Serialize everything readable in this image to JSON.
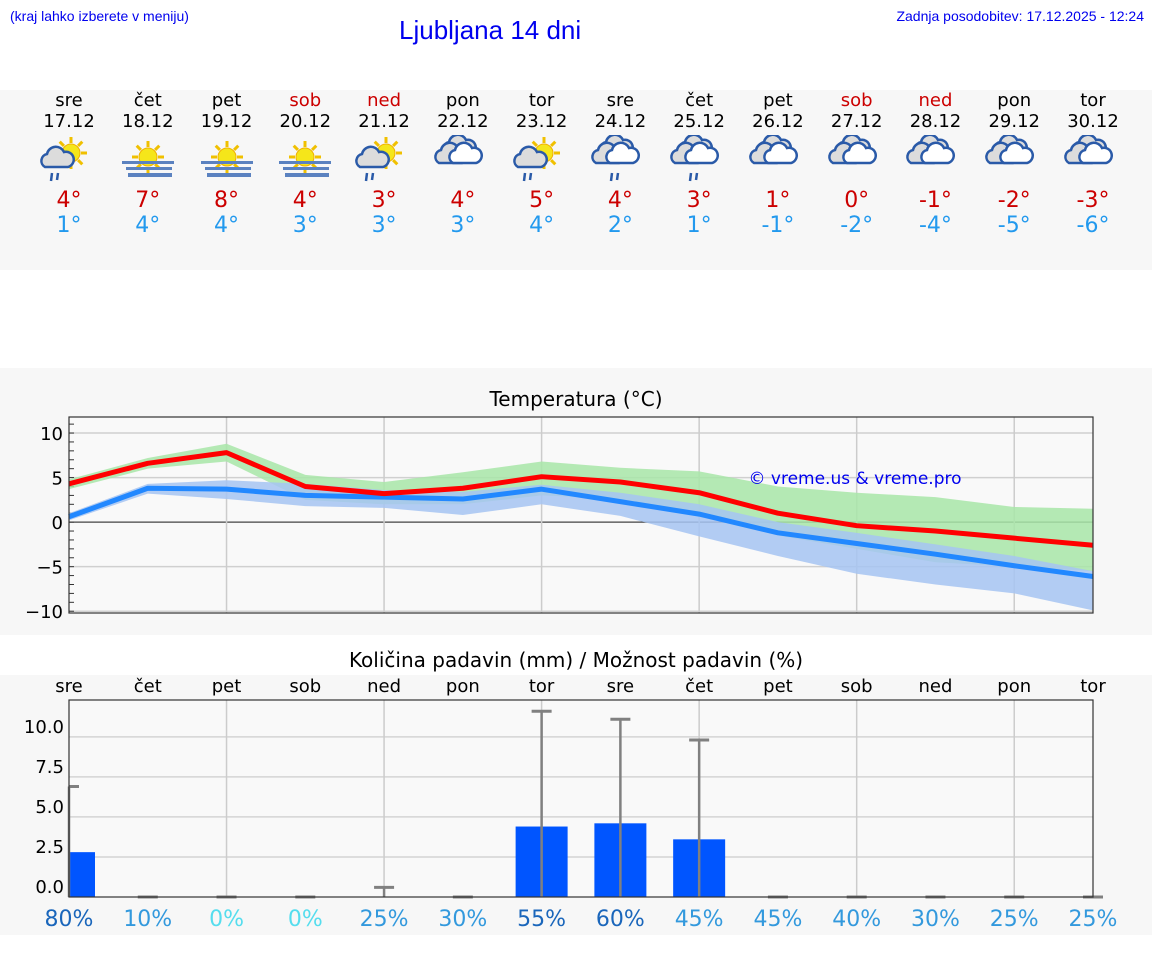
{
  "header": {
    "hint": "(kraj lahko izberete v meniju)",
    "title": "Ljubljana 14 dni",
    "updated": "Zadnja posodobitev: 17.12.2025 - 12:24"
  },
  "days": [
    {
      "name": "sre",
      "date": "17.12",
      "weekend": false,
      "icon": "sun-cloud-rain",
      "max": "4°",
      "min": "1°",
      "pct": "80%",
      "pct_color": "#1a66bb"
    },
    {
      "name": "čet",
      "date": "18.12",
      "weekend": false,
      "icon": "sun-fog",
      "max": "7°",
      "min": "4°",
      "pct": "10%",
      "pct_color": "#3399dd"
    },
    {
      "name": "pet",
      "date": "19.12",
      "weekend": false,
      "icon": "sun-fog",
      "max": "8°",
      "min": "4°",
      "pct": "0%",
      "pct_color": "#55ddee"
    },
    {
      "name": "sob",
      "date": "20.12",
      "weekend": true,
      "icon": "sun-fog",
      "max": "4°",
      "min": "3°",
      "pct": "0%",
      "pct_color": "#55ddee"
    },
    {
      "name": "ned",
      "date": "21.12",
      "weekend": true,
      "icon": "sun-cloud-rain",
      "max": "3°",
      "min": "3°",
      "pct": "25%",
      "pct_color": "#3399dd"
    },
    {
      "name": "pon",
      "date": "22.12",
      "weekend": false,
      "icon": "overcast",
      "max": "4°",
      "min": "3°",
      "pct": "30%",
      "pct_color": "#3399dd"
    },
    {
      "name": "tor",
      "date": "23.12",
      "weekend": false,
      "icon": "sun-cloud-rain",
      "max": "5°",
      "min": "4°",
      "pct": "55%",
      "pct_color": "#1a66bb"
    },
    {
      "name": "sre",
      "date": "24.12",
      "weekend": false,
      "icon": "overcast-rain",
      "max": "4°",
      "min": "2°",
      "pct": "60%",
      "pct_color": "#1a66bb"
    },
    {
      "name": "čet",
      "date": "25.12",
      "weekend": false,
      "icon": "overcast-rain",
      "max": "3°",
      "min": "1°",
      "pct": "45%",
      "pct_color": "#3399dd"
    },
    {
      "name": "pet",
      "date": "26.12",
      "weekend": false,
      "icon": "overcast",
      "max": "1°",
      "min": "-1°",
      "pct": "45%",
      "pct_color": "#3399dd"
    },
    {
      "name": "sob",
      "date": "27.12",
      "weekend": true,
      "icon": "overcast",
      "max": "0°",
      "min": "-2°",
      "pct": "40%",
      "pct_color": "#3399dd"
    },
    {
      "name": "ned",
      "date": "28.12",
      "weekend": true,
      "icon": "overcast",
      "max": "-1°",
      "min": "-4°",
      "pct": "30%",
      "pct_color": "#3399dd"
    },
    {
      "name": "pon",
      "date": "29.12",
      "weekend": false,
      "icon": "overcast",
      "max": "-2°",
      "min": "-5°",
      "pct": "25%",
      "pct_color": "#3399dd"
    },
    {
      "name": "tor",
      "date": "30.12",
      "weekend": false,
      "icon": "overcast",
      "max": "-3°",
      "min": "-6°",
      "pct": "25%",
      "pct_color": "#3399dd"
    }
  ],
  "chart_data": [
    {
      "type": "line",
      "title": "Temperatura (°C)",
      "watermark": "© vreme.us & vreme.pro",
      "ylim": [
        -10.2,
        11.8
      ],
      "yticks": [
        10,
        5,
        0,
        -5,
        -10
      ],
      "ytick_labels": [
        "10",
        "5",
        "0",
        "−5",
        "−10"
      ],
      "grid": true,
      "x": [
        "17.12",
        "18.12",
        "19.12",
        "20.12",
        "21.12",
        "22.12",
        "23.12",
        "24.12",
        "25.12",
        "26.12",
        "27.12",
        "28.12",
        "29.12",
        "30.12"
      ],
      "series": [
        {
          "values": [
            4.3,
            6.6,
            7.8,
            4.0,
            3.2,
            3.8,
            5.1,
            4.5,
            3.3,
            1.0,
            -0.4,
            -1.0,
            -1.8,
            -2.6
          ],
          "color": "#ff0000",
          "band_upper": [
            4.8,
            7.2,
            8.8,
            5.3,
            4.5,
            5.6,
            6.8,
            6.1,
            5.7,
            4.0,
            3.3,
            2.8,
            1.7,
            1.5
          ],
          "band_lower": [
            3.7,
            6.0,
            6.8,
            2.5,
            2.0,
            2.0,
            3.0,
            2.6,
            1.0,
            -1.5,
            -3.0,
            -4.5,
            -5.0,
            -5.5
          ],
          "band_color": "#a8e6a8"
        },
        {
          "values": [
            0.6,
            3.8,
            3.7,
            3.0,
            2.8,
            2.6,
            3.7,
            2.3,
            0.9,
            -1.2,
            -2.4,
            -3.6,
            -4.9,
            -6.1
          ],
          "color": "#2288ff",
          "band_upper": [
            1.0,
            4.3,
            4.7,
            4.3,
            3.6,
            3.4,
            4.2,
            3.3,
            2.0,
            0.0,
            -1.2,
            -2.5,
            -3.8,
            -5.5
          ],
          "band_lower": [
            0.2,
            3.2,
            2.6,
            1.8,
            1.6,
            0.8,
            2.0,
            0.7,
            -1.6,
            -3.8,
            -5.8,
            -7.0,
            -8.0,
            -9.9
          ],
          "band_color": "#a6c4f2"
        }
      ]
    },
    {
      "type": "bar",
      "title": "Količina padavin (mm) / Možnost padavin (%)",
      "ylim": [
        0,
        12.3
      ],
      "yticks": [
        0,
        2.5,
        5,
        7.5,
        10
      ],
      "ytick_labels": [
        "0.0",
        "2.5",
        "5.0",
        "7.5",
        "10.0"
      ],
      "grid": true,
      "categories": [
        "sre",
        "čet",
        "pet",
        "sob",
        "ned",
        "pon",
        "tor",
        "sre",
        "čet",
        "pet",
        "sob",
        "ned",
        "pon",
        "tor"
      ],
      "values": [
        2.8,
        0,
        0,
        0,
        0,
        0,
        4.4,
        4.6,
        3.6,
        0,
        0,
        0,
        0,
        0
      ],
      "error_upper": [
        6.9,
        0,
        0,
        0,
        0.6,
        0,
        11.6,
        11.1,
        9.8,
        0,
        0,
        0,
        0,
        0
      ],
      "bar_color": "#0055ff",
      "error_color": "#808080"
    }
  ]
}
